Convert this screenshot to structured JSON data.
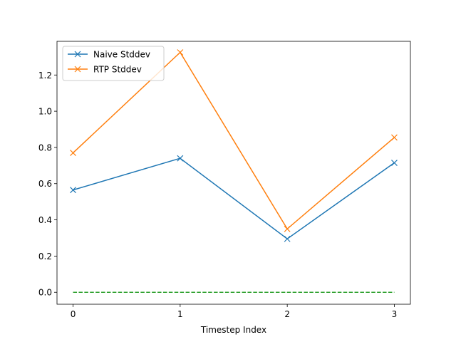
{
  "chart_data": {
    "type": "line",
    "title": "",
    "xlabel": "Timestep Index",
    "ylabel": "",
    "x": [
      0,
      1,
      2,
      3
    ],
    "xlim": [
      -0.15,
      3.15
    ],
    "ylim": [
      -0.066,
      1.386
    ],
    "xticks": [
      0,
      1,
      2,
      3
    ],
    "yticks": [
      0.0,
      0.2,
      0.4,
      0.6,
      0.8,
      1.0,
      1.2
    ],
    "ytick_labels": [
      "0.0",
      "0.2",
      "0.4",
      "0.6",
      "0.8",
      "1.0",
      "1.2"
    ],
    "grid": false,
    "legend_position": "upper-left",
    "series": [
      {
        "name": "Naive Stddev",
        "values": [
          0.565,
          0.74,
          0.295,
          0.715
        ],
        "color": "#1f77b4",
        "marker": "x",
        "style": "solid"
      },
      {
        "name": "RTP Stddev",
        "values": [
          0.77,
          1.325,
          0.35,
          0.855
        ],
        "color": "#ff7f0e",
        "marker": "x",
        "style": "solid"
      },
      {
        "values": [
          0.0,
          0.0,
          0.0,
          0.0
        ],
        "color": "#2ca02c",
        "marker": "none",
        "style": "dashed"
      }
    ]
  }
}
